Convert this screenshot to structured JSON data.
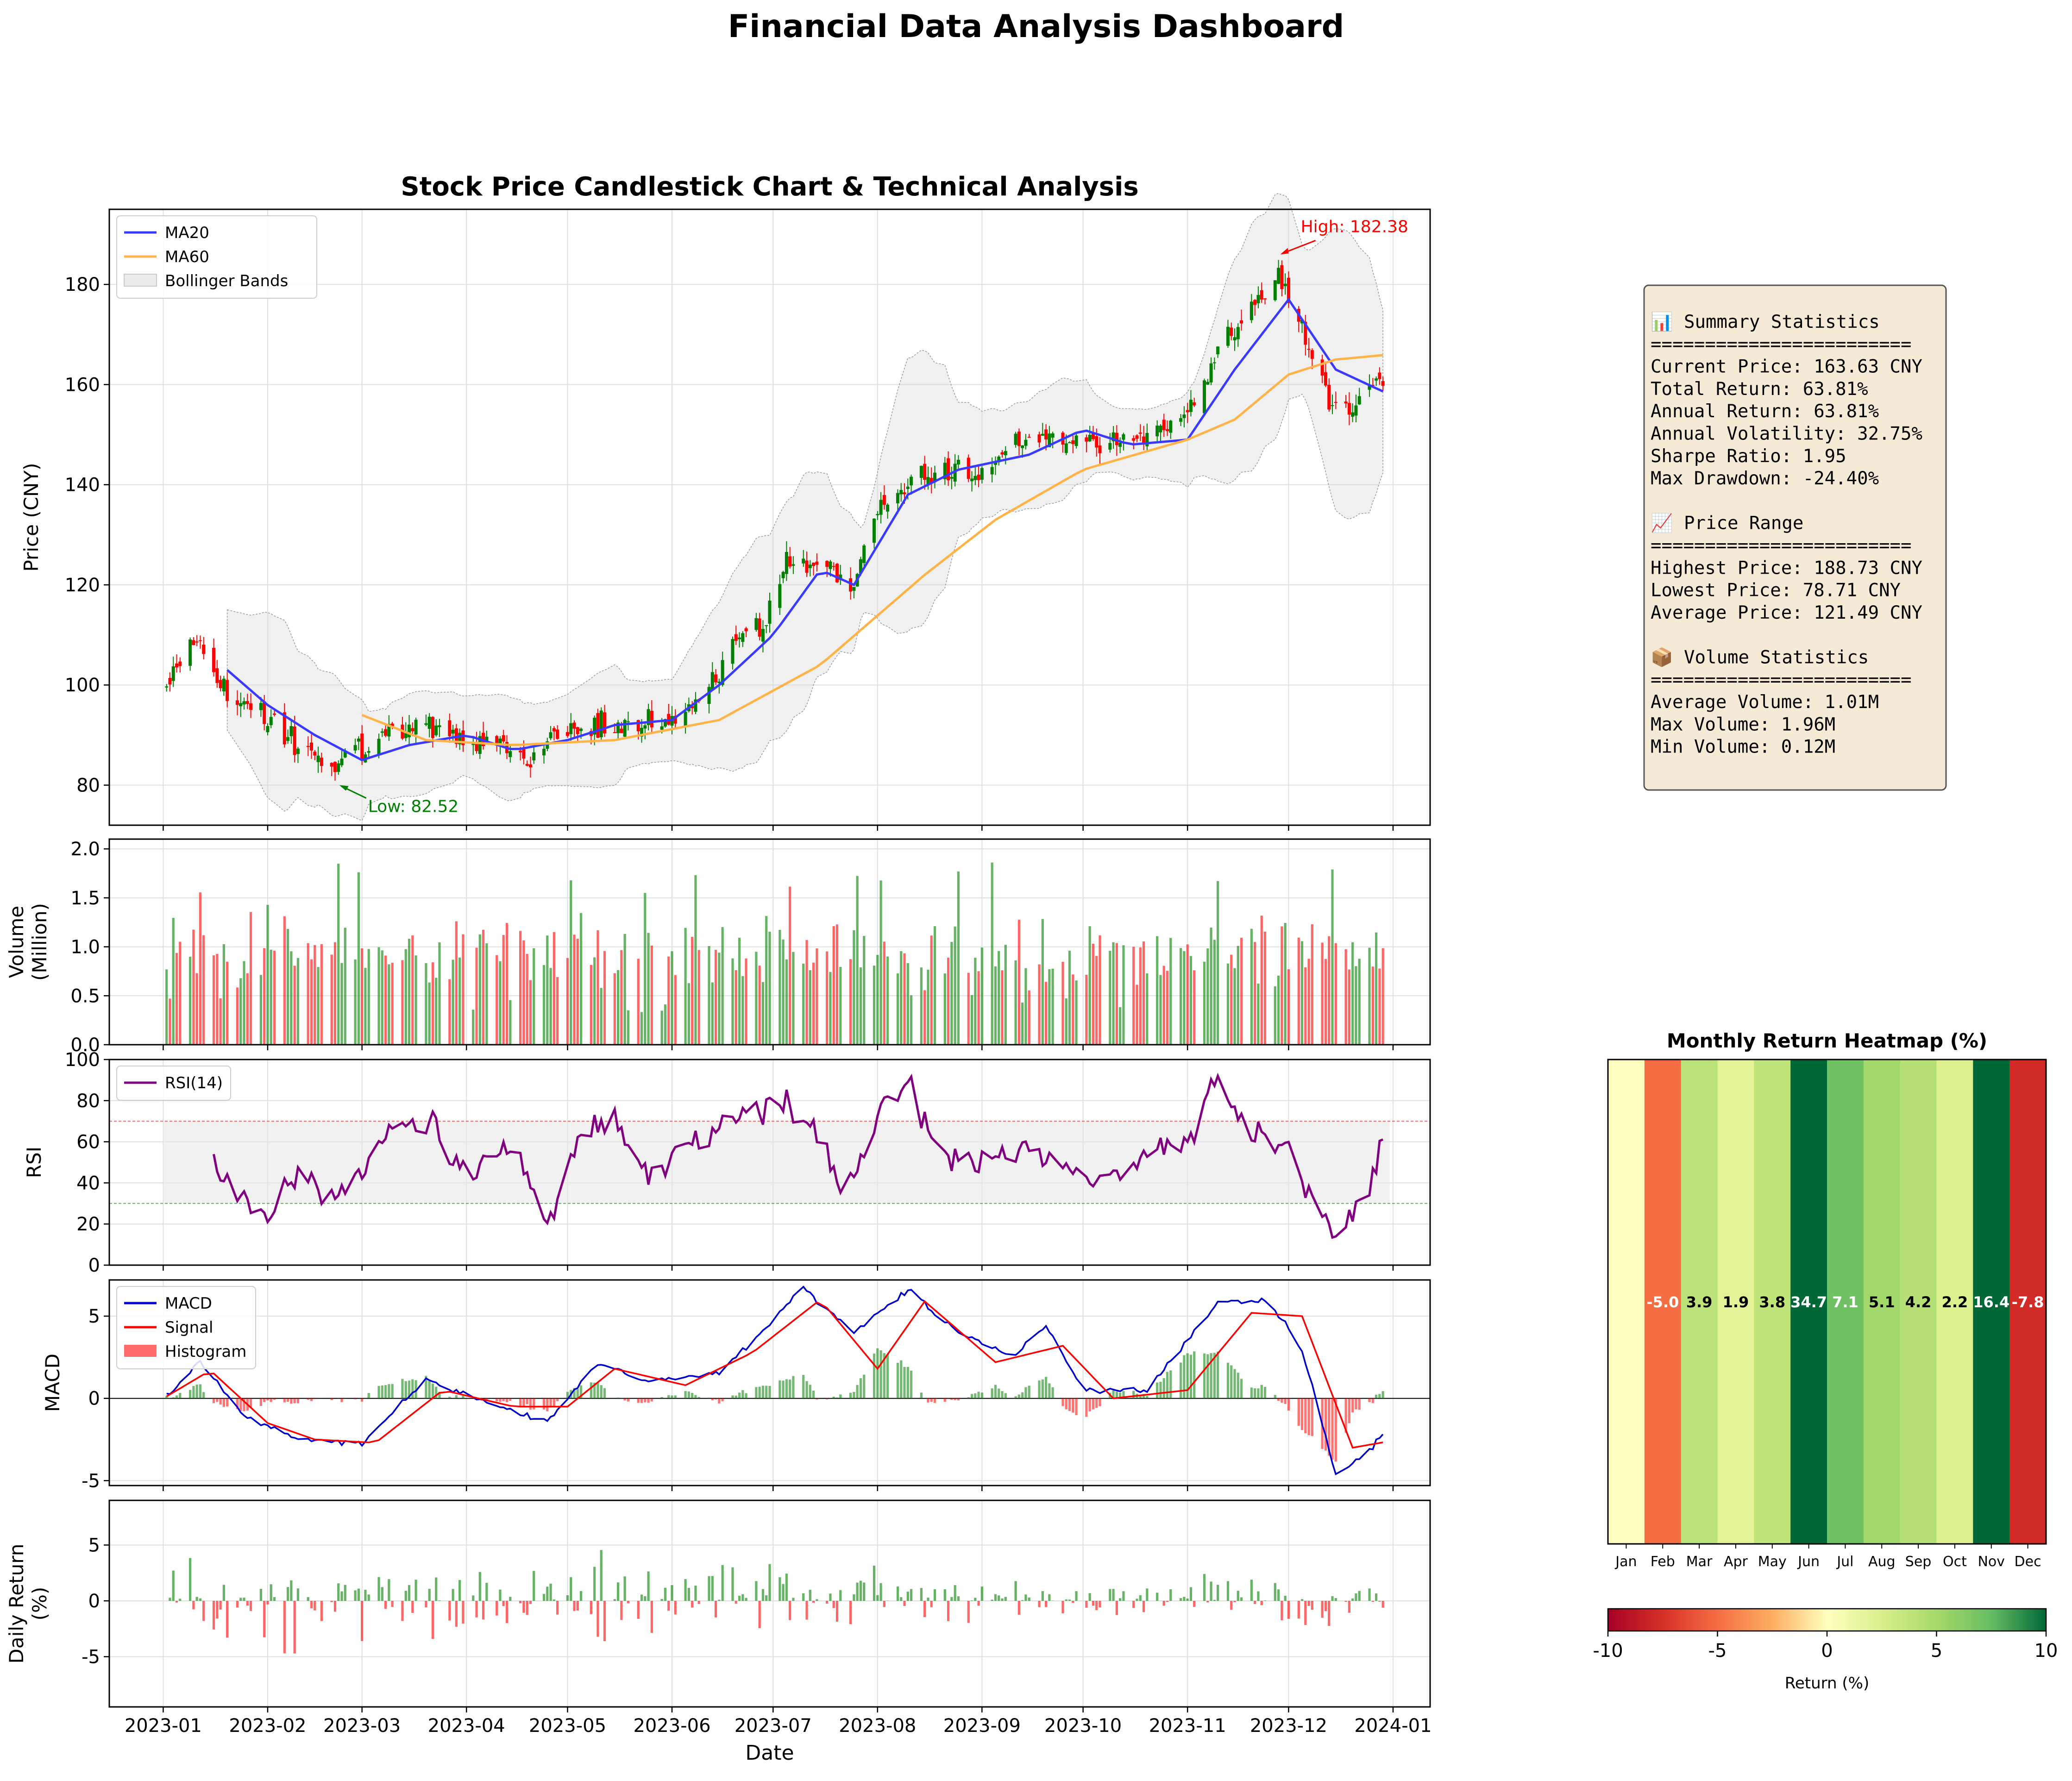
{
  "dashboard": {
    "title": "Financial Data Analysis Dashboard"
  },
  "chart_data": [
    {
      "id": "price",
      "type": "candlestick",
      "title": "Stock Price Candlestick Chart & Technical Analysis",
      "ylabel": "Price (CNY)",
      "ylim": [
        72,
        195
      ],
      "yticks": [
        80,
        100,
        120,
        140,
        160,
        180
      ],
      "xlim": [
        "2022-12-16",
        "2024-01-12"
      ],
      "xticks": [
        "2023-01",
        "2023-02",
        "2023-03",
        "2023-04",
        "2023-05",
        "2023-06",
        "2023-07",
        "2023-08",
        "2023-09",
        "2023-10",
        "2023-11",
        "2023-12",
        "2024-01"
      ],
      "legend": [
        "MA20",
        "MA60",
        "Bollinger Bands"
      ],
      "legend_position": "upper-left",
      "grid": true,
      "colors": {
        "up": "#008000",
        "down": "#ff0000",
        "ma20": "#3a3aff",
        "ma60": "#ffb347",
        "band": "#d9d9d9"
      },
      "close_anchors": [
        [
          "2023-01-01",
          100
        ],
        [
          "2023-01-06",
          106
        ],
        [
          "2023-01-12",
          109
        ],
        [
          "2023-01-20",
          98
        ],
        [
          "2023-02-01",
          93
        ],
        [
          "2023-02-10",
          88
        ],
        [
          "2023-02-20",
          84
        ],
        [
          "2023-03-01",
          87
        ],
        [
          "2023-03-10",
          90
        ],
        [
          "2023-03-20",
          92
        ],
        [
          "2023-04-01",
          89
        ],
        [
          "2023-04-10",
          88
        ],
        [
          "2023-04-20",
          85
        ],
        [
          "2023-05-01",
          92
        ],
        [
          "2023-05-15",
          91
        ],
        [
          "2023-06-01",
          93
        ],
        [
          "2023-06-10",
          97
        ],
        [
          "2023-06-20",
          108
        ],
        [
          "2023-06-28",
          112
        ],
        [
          "2023-07-05",
          124
        ],
        [
          "2023-07-15",
          124
        ],
        [
          "2023-07-25",
          120
        ],
        [
          "2023-08-01",
          135
        ],
        [
          "2023-08-10",
          141
        ],
        [
          "2023-08-20",
          142
        ],
        [
          "2023-09-01",
          143
        ],
        [
          "2023-09-10",
          147
        ],
        [
          "2023-09-20",
          150
        ],
        [
          "2023-10-01",
          149
        ],
        [
          "2023-10-15",
          148
        ],
        [
          "2023-11-01",
          155
        ],
        [
          "2023-11-10",
          166
        ],
        [
          "2023-11-20",
          176
        ],
        [
          "2023-11-28",
          181
        ],
        [
          "2023-12-05",
          172
        ],
        [
          "2023-12-10",
          162
        ],
        [
          "2023-12-15",
          155
        ],
        [
          "2023-12-22",
          157
        ],
        [
          "2023-12-31",
          163
        ]
      ],
      "ma20_anchors": [
        [
          "2023-01-20",
          103
        ],
        [
          "2023-02-01",
          96
        ],
        [
          "2023-02-15",
          90
        ],
        [
          "2023-03-01",
          85
        ],
        [
          "2023-03-15",
          88
        ],
        [
          "2023-04-01",
          90
        ],
        [
          "2023-04-15",
          87
        ],
        [
          "2023-05-01",
          89
        ],
        [
          "2023-05-15",
          92
        ],
        [
          "2023-06-01",
          93
        ],
        [
          "2023-06-15",
          100
        ],
        [
          "2023-07-01",
          110
        ],
        [
          "2023-07-15",
          123
        ],
        [
          "2023-07-25",
          120
        ],
        [
          "2023-08-10",
          138
        ],
        [
          "2023-08-25",
          143
        ],
        [
          "2023-09-15",
          146
        ],
        [
          "2023-10-01",
          151
        ],
        [
          "2023-10-15",
          148
        ],
        [
          "2023-11-01",
          149
        ],
        [
          "2023-11-15",
          163
        ],
        [
          "2023-12-01",
          177
        ],
        [
          "2023-12-15",
          163
        ],
        [
          "2023-12-31",
          158
        ]
      ],
      "ma60_anchors": [
        [
          "2023-03-01",
          94
        ],
        [
          "2023-03-20",
          89
        ],
        [
          "2023-04-15",
          88
        ],
        [
          "2023-05-15",
          89
        ],
        [
          "2023-06-15",
          93
        ],
        [
          "2023-07-15",
          104
        ],
        [
          "2023-08-15",
          122
        ],
        [
          "2023-09-05",
          133
        ],
        [
          "2023-10-01",
          143
        ],
        [
          "2023-11-01",
          149
        ],
        [
          "2023-11-15",
          153
        ],
        [
          "2023-12-01",
          162
        ],
        [
          "2023-12-15",
          165
        ],
        [
          "2023-12-31",
          166
        ]
      ],
      "annotations": [
        {
          "text": "High: 182.38",
          "date": "2023-11-28",
          "value": 186,
          "color": "#ff0000"
        },
        {
          "text": "Low: 82.52",
          "date": "2023-02-22",
          "value": 80,
          "color": "#008000"
        }
      ]
    },
    {
      "id": "volume",
      "type": "bar",
      "ylabel": "Volume\n(Million)",
      "ylim": [
        0,
        2.1
      ],
      "yticks": [
        0.0,
        0.5,
        1.0,
        1.5,
        2.0
      ],
      "ytick_labels": [
        "0.0",
        "0.5",
        "1.0",
        "1.5",
        "2.0"
      ],
      "grid": true
    },
    {
      "id": "rsi",
      "type": "line",
      "ylabel": "RSI",
      "ylim": [
        0,
        100
      ],
      "yticks": [
        0,
        20,
        40,
        60,
        80,
        100
      ],
      "legend": [
        "RSI(14)"
      ],
      "legend_position": "upper-left",
      "thresholds": [
        30,
        70
      ],
      "color": "#800080",
      "anchors": [
        [
          "2023-01-14",
          60
        ],
        [
          "2023-01-20",
          40
        ],
        [
          "2023-02-01",
          22
        ],
        [
          "2023-02-10",
          45
        ],
        [
          "2023-02-20",
          30
        ],
        [
          "2023-03-01",
          45
        ],
        [
          "2023-03-10",
          65
        ],
        [
          "2023-03-20",
          70
        ],
        [
          "2023-04-01",
          45
        ],
        [
          "2023-04-15",
          60
        ],
        [
          "2023-04-25",
          18
        ],
        [
          "2023-05-05",
          65
        ],
        [
          "2023-05-15",
          70
        ],
        [
          "2023-05-25",
          40
        ],
        [
          "2023-06-05",
          60
        ],
        [
          "2023-06-15",
          70
        ],
        [
          "2023-06-25",
          75
        ],
        [
          "2023-07-05",
          80
        ],
        [
          "2023-07-15",
          60
        ],
        [
          "2023-07-22",
          30
        ],
        [
          "2023-08-01",
          75
        ],
        [
          "2023-08-10",
          90
        ],
        [
          "2023-08-20",
          50
        ],
        [
          "2023-09-01",
          50
        ],
        [
          "2023-09-15",
          60
        ],
        [
          "2023-09-25",
          45
        ],
        [
          "2023-10-05",
          40
        ],
        [
          "2023-10-20",
          55
        ],
        [
          "2023-11-01",
          60
        ],
        [
          "2023-11-10",
          90
        ],
        [
          "2023-11-20",
          65
        ],
        [
          "2023-12-01",
          55
        ],
        [
          "2023-12-10",
          25
        ],
        [
          "2023-12-15",
          12
        ],
        [
          "2023-12-25",
          40
        ],
        [
          "2023-12-31",
          70
        ]
      ]
    },
    {
      "id": "macd",
      "type": "line",
      "ylabel": "MACD",
      "ylim": [
        -5.3,
        7.2
      ],
      "yticks": [
        -5,
        0,
        5
      ],
      "legend": [
        "MACD",
        "Signal",
        "Histogram"
      ],
      "legend_position": "upper-left",
      "colors": {
        "macd": "#0000cc",
        "signal": "#ff0000",
        "hist_pos": "#008000",
        "hist_neg": "#ff0000"
      },
      "macd_anchors": [
        [
          "2023-01-01",
          0
        ],
        [
          "2023-01-12",
          2.2
        ],
        [
          "2023-01-25",
          -1
        ],
        [
          "2023-02-10",
          -2.5
        ],
        [
          "2023-03-01",
          -2.8
        ],
        [
          "2023-03-20",
          1.2
        ],
        [
          "2023-04-10",
          -0.5
        ],
        [
          "2023-04-25",
          -1.5
        ],
        [
          "2023-05-10",
          2.2
        ],
        [
          "2023-05-25",
          1
        ],
        [
          "2023-06-15",
          1.5
        ],
        [
          "2023-06-25",
          3.5
        ],
        [
          "2023-07-10",
          6.7
        ],
        [
          "2023-07-25",
          4
        ],
        [
          "2023-08-10",
          6.6
        ],
        [
          "2023-08-25",
          4
        ],
        [
          "2023-09-10",
          2.5
        ],
        [
          "2023-09-20",
          4.5
        ],
        [
          "2023-10-01",
          0.5
        ],
        [
          "2023-10-20",
          0.5
        ],
        [
          "2023-11-10",
          5.8
        ],
        [
          "2023-11-25",
          6
        ],
        [
          "2023-12-05",
          3
        ],
        [
          "2023-12-15",
          -4.7
        ],
        [
          "2023-12-25",
          -3.2
        ],
        [
          "2023-12-31",
          -1.6
        ]
      ],
      "signal_anchors": [
        [
          "2023-01-01",
          0
        ],
        [
          "2023-01-15",
          1.7
        ],
        [
          "2023-02-01",
          -1.5
        ],
        [
          "2023-02-15",
          -2.5
        ],
        [
          "2023-03-05",
          -2.7
        ],
        [
          "2023-03-25",
          0.5
        ],
        [
          "2023-04-15",
          -0.5
        ],
        [
          "2023-05-01",
          -0.5
        ],
        [
          "2023-05-15",
          1.8
        ],
        [
          "2023-06-05",
          0.8
        ],
        [
          "2023-06-25",
          2.8
        ],
        [
          "2023-07-15",
          6
        ],
        [
          "2023-08-01",
          1.8
        ],
        [
          "2023-08-15",
          5.9
        ],
        [
          "2023-09-05",
          2.2
        ],
        [
          "2023-09-25",
          3.2
        ],
        [
          "2023-10-10",
          0
        ],
        [
          "2023-11-01",
          0.5
        ],
        [
          "2023-11-20",
          5.2
        ],
        [
          "2023-12-05",
          5
        ],
        [
          "2023-12-20",
          -3
        ],
        [
          "2023-12-31",
          -2.6
        ]
      ]
    },
    {
      "id": "daily_return",
      "type": "bar",
      "ylabel": "Daily Return\n(%)",
      "xlabel": "Date",
      "ylim": [
        -9.5,
        9
      ],
      "yticks": [
        -5,
        0,
        5
      ],
      "grid": true
    },
    {
      "id": "heatmap",
      "type": "heatmap",
      "title": "Monthly Return Heatmap (%)",
      "categories": [
        "Jan",
        "Feb",
        "Mar",
        "Apr",
        "May",
        "Jun",
        "Jul",
        "Aug",
        "Sep",
        "Oct",
        "Nov",
        "Dec"
      ],
      "values": [
        null,
        -5.0,
        3.9,
        1.9,
        3.8,
        34.7,
        7.1,
        5.1,
        4.2,
        2.2,
        16.4,
        -7.8
      ],
      "labels": [
        "",
        "-5.0",
        "3.9",
        "1.9",
        "3.8",
        "34.7",
        "7.1",
        "5.1",
        "4.2",
        "2.2",
        "16.4",
        "-7.8"
      ],
      "vmin": -10,
      "vmax": 10,
      "colormap": "RdYlGn",
      "colorbar_label": "Return (%)",
      "colorbar_ticks": [
        -10,
        -5,
        0,
        5,
        10
      ]
    }
  ],
  "summary": {
    "lines": [
      "📊 Summary Statistics",
      "========================",
      "Current Price: 163.63 CNY",
      "Total Return: 63.81%",
      "Annual Return: 63.81%",
      "Annual Volatility: 32.75%",
      "Sharpe Ratio: 1.95",
      "Max Drawdown: -24.40%",
      "",
      "📈 Price Range",
      "========================",
      "Highest Price: 188.73 CNY",
      "Lowest Price: 78.71 CNY",
      "Average Price: 121.49 CNY",
      "",
      "📦 Volume Statistics",
      "========================",
      "Average Volume: 1.01M",
      "Max Volume: 1.96M",
      "Min Volume: 0.12M"
    ],
    "background": "#f5ead6",
    "border": "#555555"
  }
}
